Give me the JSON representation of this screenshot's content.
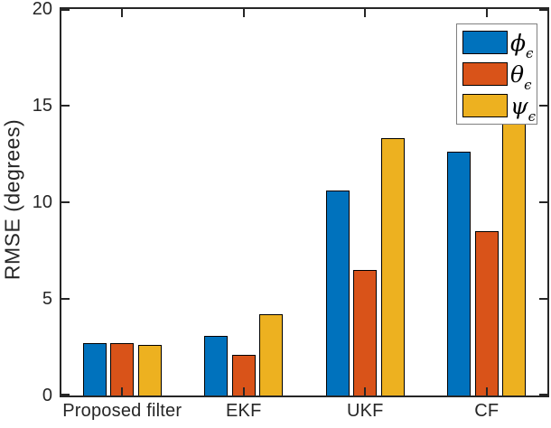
{
  "figure": {
    "background": "#ffffff",
    "axis_color": "#262626",
    "bar_edge_color": "#000000",
    "legend_border_color": "#808080"
  },
  "chart_data": {
    "type": "bar",
    "title": "",
    "categories": [
      "Proposed filter",
      "EKF",
      "UKF",
      "CF"
    ],
    "series": [
      {
        "name": "phi_epsilon",
        "symbol": "ϕ",
        "subscript": "ϵ",
        "color": "#0072BD",
        "values": [
          2.7,
          3.1,
          10.6,
          12.6
        ]
      },
      {
        "name": "theta_epsilon",
        "symbol": "θ",
        "subscript": "ϵ",
        "color": "#D95319",
        "values": [
          2.7,
          2.1,
          6.5,
          8.5
        ]
      },
      {
        "name": "psi_epsilon",
        "symbol": "ψ",
        "subscript": "ϵ",
        "color": "#EDB120",
        "values": [
          2.6,
          4.2,
          13.3,
          14.3
        ]
      }
    ],
    "xlabel": "",
    "ylabel": "RMSE (degrees)",
    "ylim": [
      0,
      20
    ],
    "yticks": [
      0,
      5,
      10,
      15,
      20
    ],
    "grid": false,
    "legend_position": "top-right"
  }
}
